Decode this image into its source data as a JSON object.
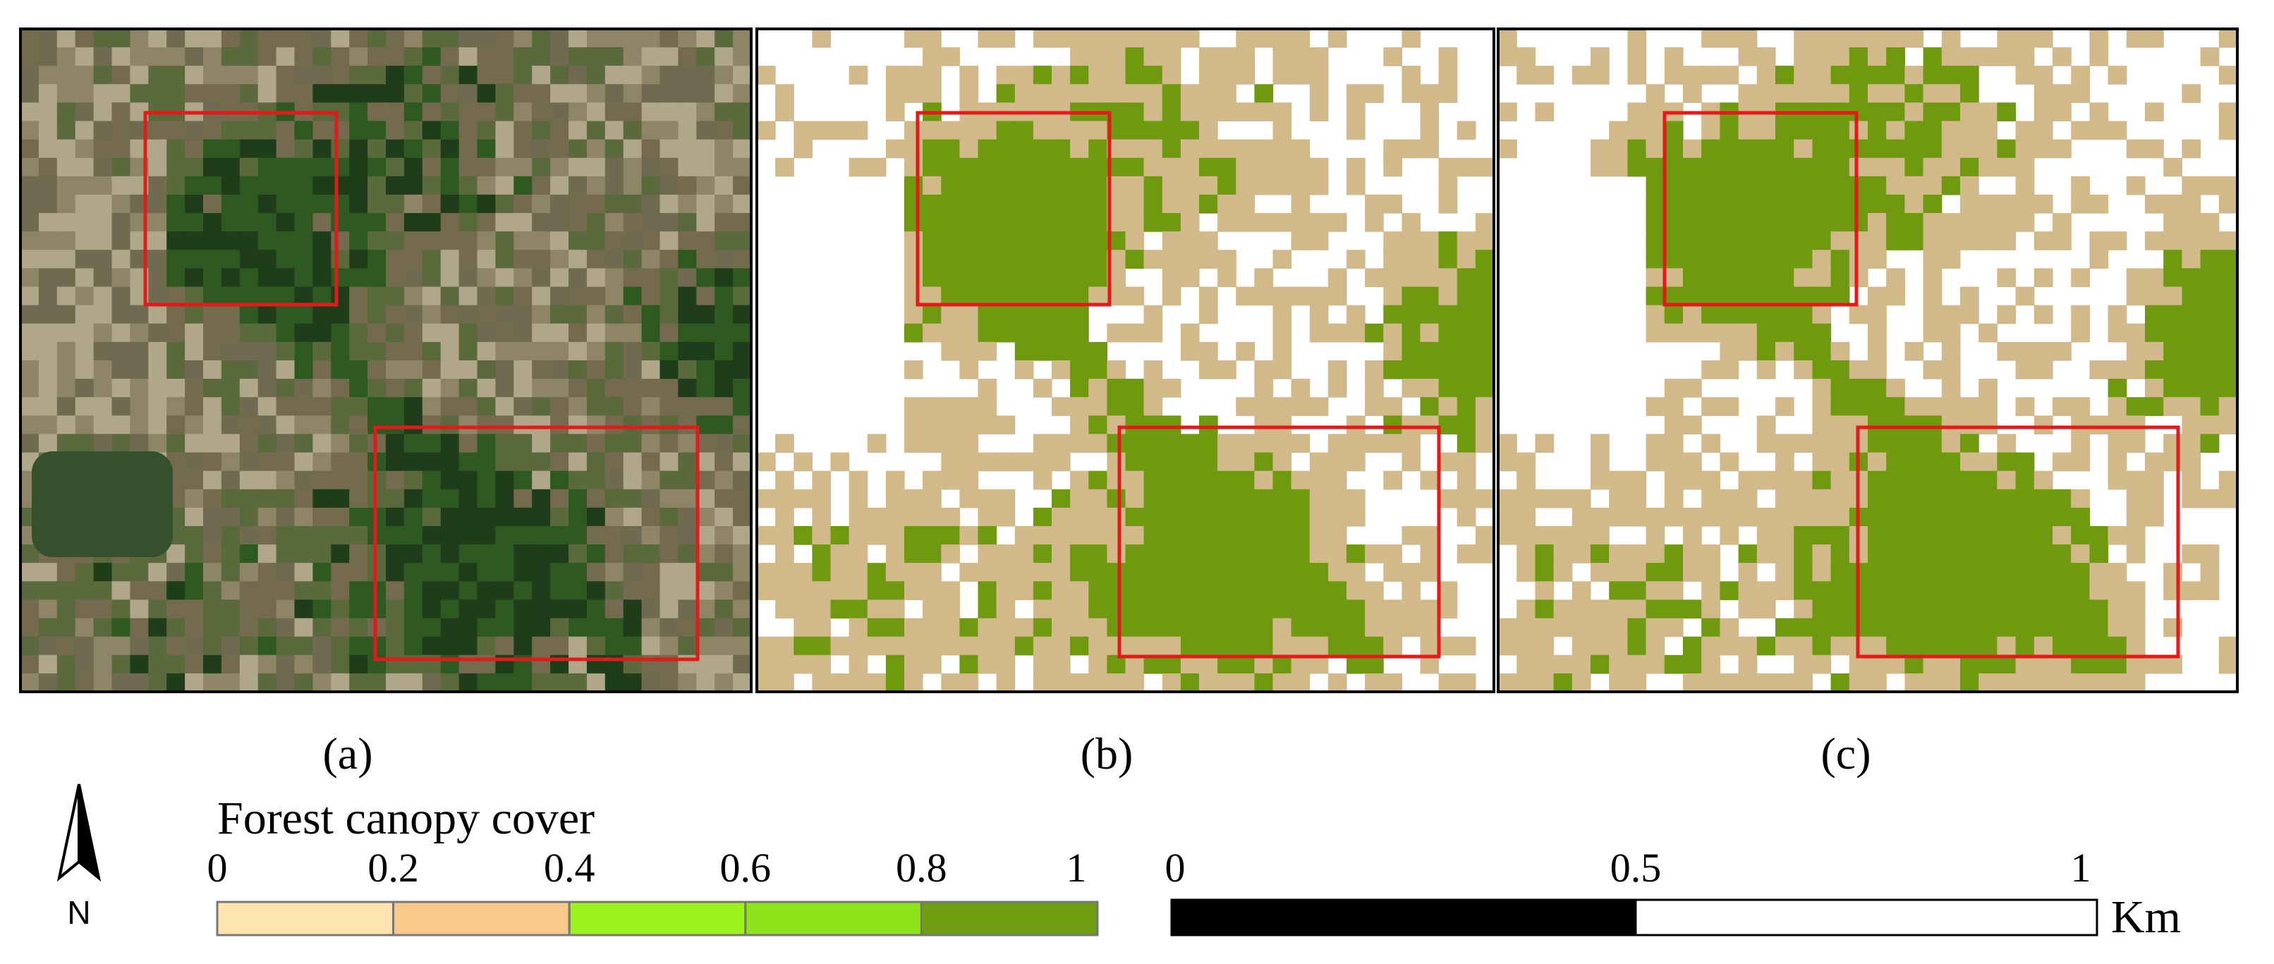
{
  "panels": [
    {
      "label": "(a)"
    },
    {
      "label": "(b)"
    },
    {
      "label": "(c)"
    }
  ],
  "north_arrow": {
    "label": "N"
  },
  "legend": {
    "title": "Forest canopy cover",
    "ticks": [
      "0",
      "0.2",
      "0.4",
      "0.6",
      "0.8",
      "1"
    ],
    "colors": [
      "#fde3ae",
      "#f9c98a",
      "#9cf21c",
      "#8ee21a",
      "#6f9e12"
    ]
  },
  "scale_bar": {
    "ticks": [
      "0",
      "0.5",
      "1"
    ],
    "unit": "Km"
  }
}
